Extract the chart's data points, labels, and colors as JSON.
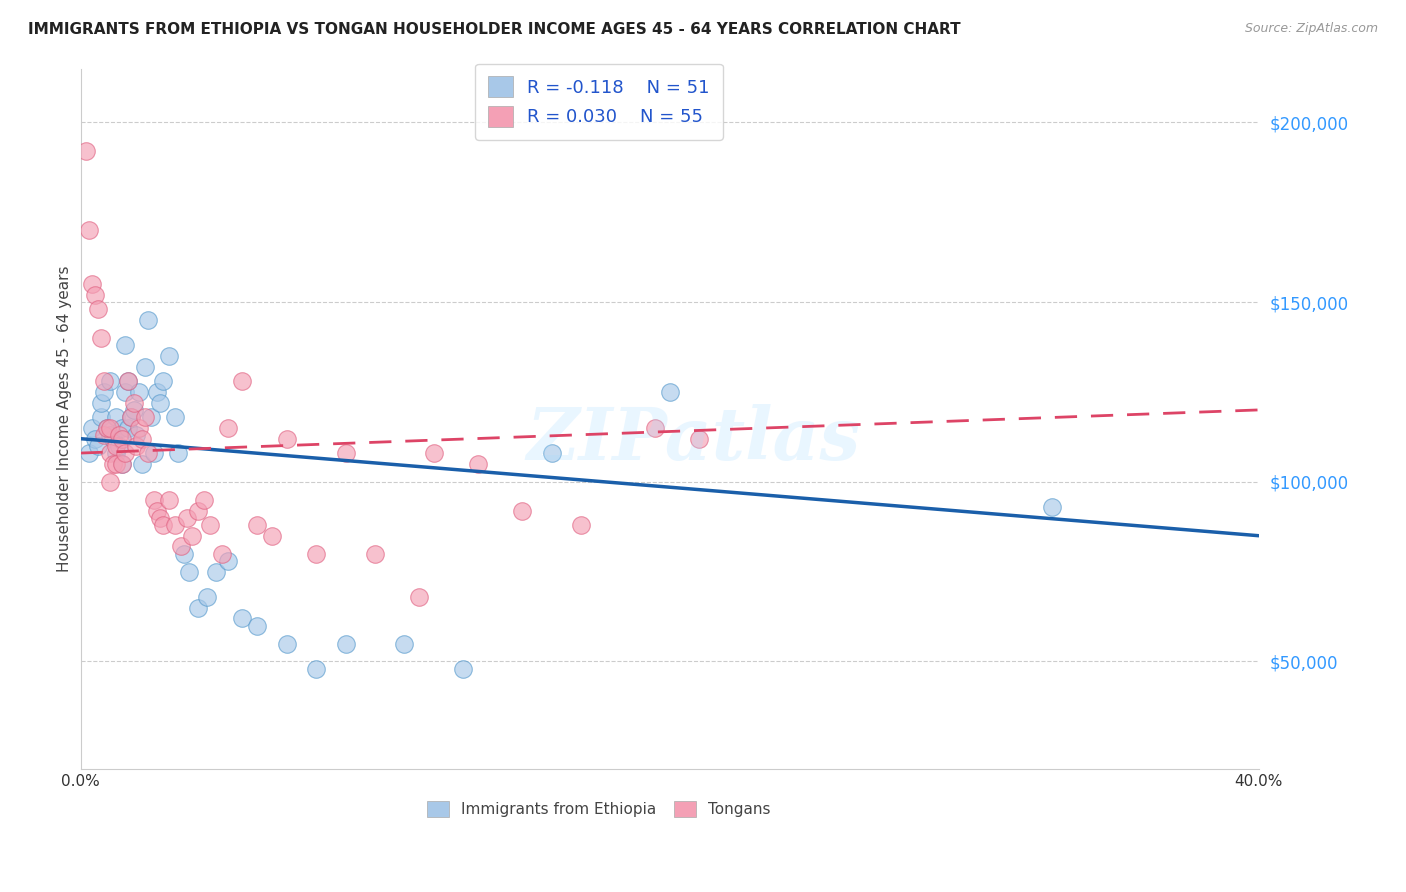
{
  "title": "IMMIGRANTS FROM ETHIOPIA VS TONGAN HOUSEHOLDER INCOME AGES 45 - 64 YEARS CORRELATION CHART",
  "source": "Source: ZipAtlas.com",
  "ylabel": "Householder Income Ages 45 - 64 years",
  "legend_label1": "Immigrants from Ethiopia",
  "legend_label2": "Tongans",
  "r1": -0.118,
  "n1": 51,
  "r2": 0.03,
  "n2": 55,
  "color1": "#a8c8e8",
  "color2": "#f4a0b5",
  "color1_edge": "#5599cc",
  "color2_edge": "#e06080",
  "line1_color": "#1a5faa",
  "line2_color": "#dd4466",
  "xlim": [
    0.0,
    0.4
  ],
  "ylim": [
    20000,
    215000
  ],
  "yticks": [
    50000,
    100000,
    150000,
    200000
  ],
  "ytick_labels": [
    "$50,000",
    "$100,000",
    "$150,000",
    "$200,000"
  ],
  "xticks": [
    0.0,
    0.05,
    0.1,
    0.15,
    0.2,
    0.25,
    0.3,
    0.35,
    0.4
  ],
  "xtick_labels": [
    "0.0%",
    "",
    "",
    "",
    "",
    "",
    "",
    "",
    "40.0%"
  ],
  "line1_x0": 0.0,
  "line1_y0": 112000,
  "line1_x1": 0.4,
  "line1_y1": 85000,
  "line2_x0": 0.0,
  "line2_y0": 108000,
  "line2_x1": 0.4,
  "line2_y1": 120000,
  "blue_points_x": [
    0.003,
    0.004,
    0.005,
    0.006,
    0.007,
    0.007,
    0.008,
    0.009,
    0.01,
    0.01,
    0.011,
    0.012,
    0.012,
    0.013,
    0.014,
    0.014,
    0.015,
    0.015,
    0.016,
    0.016,
    0.017,
    0.018,
    0.019,
    0.02,
    0.021,
    0.022,
    0.023,
    0.024,
    0.025,
    0.026,
    0.027,
    0.028,
    0.03,
    0.032,
    0.033,
    0.035,
    0.037,
    0.04,
    0.043,
    0.046,
    0.05,
    0.055,
    0.06,
    0.07,
    0.08,
    0.09,
    0.11,
    0.13,
    0.16,
    0.2,
    0.33
  ],
  "blue_points_y": [
    108000,
    115000,
    112000,
    110000,
    118000,
    122000,
    125000,
    115000,
    128000,
    113000,
    112000,
    118000,
    108000,
    110000,
    115000,
    105000,
    138000,
    125000,
    128000,
    115000,
    118000,
    120000,
    113000,
    125000,
    105000,
    132000,
    145000,
    118000,
    108000,
    125000,
    122000,
    128000,
    135000,
    118000,
    108000,
    80000,
    75000,
    65000,
    68000,
    75000,
    78000,
    62000,
    60000,
    55000,
    48000,
    55000,
    55000,
    48000,
    108000,
    125000,
    93000
  ],
  "pink_points_x": [
    0.002,
    0.003,
    0.004,
    0.005,
    0.006,
    0.007,
    0.008,
    0.008,
    0.009,
    0.01,
    0.01,
    0.01,
    0.011,
    0.012,
    0.012,
    0.013,
    0.014,
    0.014,
    0.015,
    0.016,
    0.017,
    0.018,
    0.019,
    0.02,
    0.021,
    0.022,
    0.023,
    0.025,
    0.026,
    0.027,
    0.028,
    0.03,
    0.032,
    0.034,
    0.036,
    0.038,
    0.04,
    0.042,
    0.044,
    0.048,
    0.05,
    0.055,
    0.06,
    0.065,
    0.07,
    0.08,
    0.09,
    0.1,
    0.115,
    0.12,
    0.135,
    0.15,
    0.17,
    0.195,
    0.21
  ],
  "pink_points_y": [
    192000,
    170000,
    155000,
    152000,
    148000,
    140000,
    128000,
    113000,
    115000,
    115000,
    108000,
    100000,
    105000,
    110000,
    105000,
    113000,
    112000,
    105000,
    108000,
    128000,
    118000,
    122000,
    110000,
    115000,
    112000,
    118000,
    108000,
    95000,
    92000,
    90000,
    88000,
    95000,
    88000,
    82000,
    90000,
    85000,
    92000,
    95000,
    88000,
    80000,
    115000,
    128000,
    88000,
    85000,
    112000,
    80000,
    108000,
    80000,
    68000,
    108000,
    105000,
    92000,
    88000,
    115000,
    112000
  ]
}
